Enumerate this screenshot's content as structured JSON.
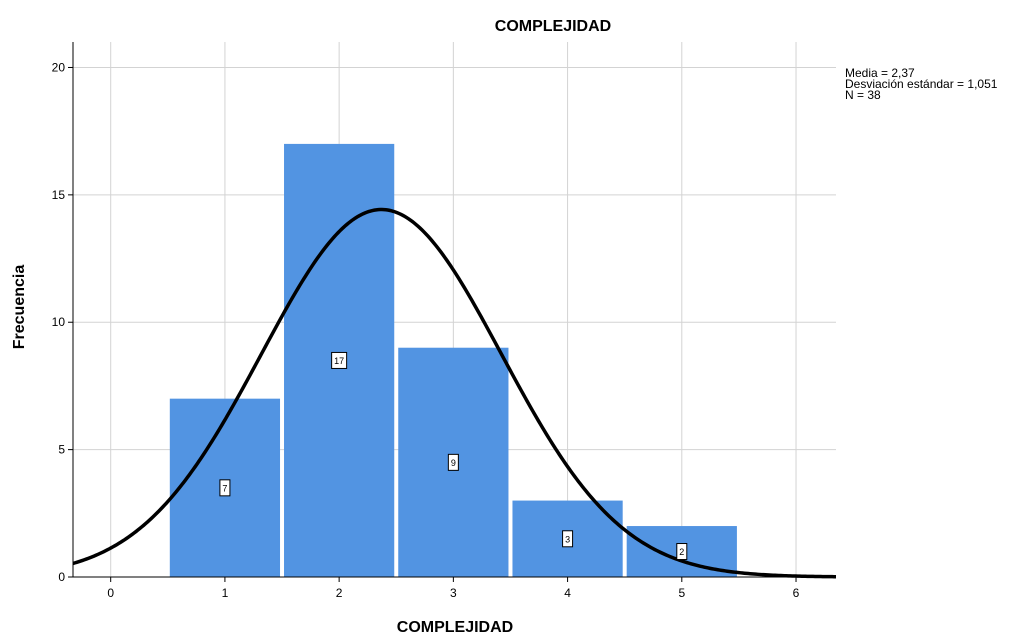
{
  "chart_data": {
    "type": "bar",
    "subtype": "histogram",
    "title": "COMPLEJIDAD",
    "xlabel": "COMPLEJIDAD",
    "ylabel": "Frecuencia",
    "x_ticks": [
      "0",
      "1",
      "2",
      "3",
      "4",
      "5",
      "6"
    ],
    "y_ticks": [
      "0",
      "5",
      "10",
      "15",
      "20"
    ],
    "xlim": [
      -0.33,
      6.35
    ],
    "ylim": [
      0,
      21
    ],
    "categories": [
      "1",
      "2",
      "3",
      "4",
      "5"
    ],
    "values": [
      7,
      17,
      9,
      3,
      2
    ],
    "bin_centers": [
      1,
      2,
      3,
      4,
      5
    ],
    "bin_width": 1,
    "value_labels": [
      "7",
      "17",
      "9",
      "3",
      "2"
    ],
    "normal_curve": {
      "mean": 2.37,
      "sd": 1.051,
      "n": 38
    },
    "stats": [
      "Media = 2,37",
      "Desviación estándar = 1,051",
      "N = 38"
    ],
    "grid": true,
    "legend_placement": "top-right",
    "colors": {
      "bar": "#5294E2",
      "curve": "#000000",
      "grid": "#D3D3D3",
      "axis": "#000000"
    }
  }
}
